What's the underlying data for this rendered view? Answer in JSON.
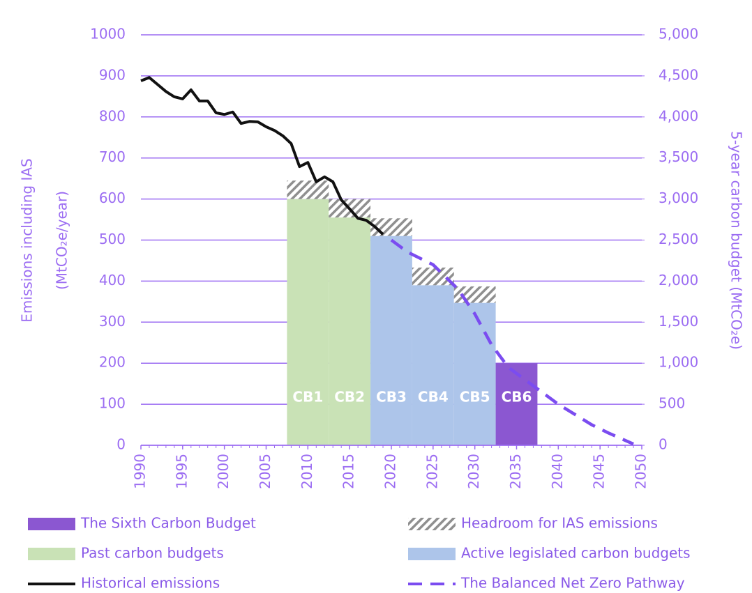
{
  "chart_data": {
    "type": "combo",
    "y_label": [
      "Emissions including IAS",
      "(MtCO₂e/year)"
    ],
    "y2_label": "5-year carbon budget (MtCO₂e)",
    "xlim": [
      1990,
      2050
    ],
    "xticks": [
      1990,
      1995,
      2000,
      2005,
      2010,
      2015,
      2020,
      2025,
      2030,
      2035,
      2040,
      2045,
      2050
    ],
    "ylim": [
      0,
      1000
    ],
    "yticks": [
      0,
      100,
      200,
      300,
      400,
      500,
      600,
      700,
      800,
      900,
      1000
    ],
    "y2lim": [
      0,
      5000
    ],
    "y2ticks": [
      0,
      500,
      {
        "value": 1000,
        "label": "1,000"
      },
      {
        "value": 1500,
        "label": "1,500"
      },
      {
        "value": 2000,
        "label": "2,000"
      },
      {
        "value": 2500,
        "label": "2,500"
      },
      {
        "value": 3000,
        "label": "3,000"
      },
      {
        "value": 3500,
        "label": "3,500"
      },
      {
        "value": 4000,
        "label": "4,000"
      },
      {
        "value": 4500,
        "label": "4,500"
      },
      {
        "value": 5000,
        "label": "5,000"
      }
    ],
    "grid": true,
    "legend": "bottom",
    "budgets": [
      "CB1",
      "CB2",
      "CB3",
      "CB4",
      "CB5",
      "CB6"
    ],
    "budget_start": [
      2008,
      2013,
      2018,
      2023,
      2028,
      2033
    ],
    "budget_end": [
      2012,
      2017,
      2022,
      2027,
      2032,
      2037
    ],
    "series": [
      {
        "name": "The Sixth Carbon Budget",
        "type": "bar",
        "color": "#8b57d1",
        "values": [
          null,
          null,
          null,
          null,
          null,
          200
        ]
      },
      {
        "name": "Headroom for IAS emissions",
        "type": "bar",
        "stacked": true,
        "pattern": "hatch",
        "color": "#8f8f8f",
        "values": [
          45,
          45,
          43,
          43,
          40,
          null
        ]
      },
      {
        "name": "Past carbon budgets",
        "type": "bar",
        "color": "#c9e2b6",
        "values": [
          600,
          555,
          null,
          null,
          null,
          null
        ]
      },
      {
        "name": "Active legislated carbon budgets",
        "type": "bar",
        "color": "#adc5ea",
        "values": [
          null,
          null,
          510,
          390,
          347,
          null
        ]
      },
      {
        "name": "Historical emissions",
        "type": "line",
        "color": "#111111",
        "x": [
          1990,
          1991,
          1992,
          1993,
          1994,
          1995,
          1996,
          1997,
          1998,
          1999,
          2000,
          2001,
          2002,
          2003,
          2004,
          2005,
          2006,
          2007,
          2008,
          2009,
          2010,
          2011,
          2012,
          2013,
          2014,
          2015,
          2016,
          2017,
          2018,
          2019
        ],
        "values": [
          888,
          896,
          879,
          862,
          849,
          844,
          866,
          839,
          839,
          810,
          806,
          812,
          784,
          789,
          788,
          776,
          767,
          754,
          735,
          679,
          689,
          642,
          654,
          642,
          598,
          576,
          553,
          548,
          533,
          514
        ]
      },
      {
        "name": "The Balanced Net Zero Pathway",
        "type": "line",
        "dash": true,
        "color": "#7b4cf0",
        "x": [
          2020,
          2022,
          2025,
          2028,
          2030,
          2032,
          2034,
          2036,
          2038,
          2040,
          2042,
          2044,
          2046,
          2048,
          2049
        ],
        "values": [
          500,
          470,
          440,
          380,
          320,
          245,
          190,
          160,
          130,
          100,
          75,
          50,
          30,
          12,
          3
        ]
      }
    ]
  }
}
